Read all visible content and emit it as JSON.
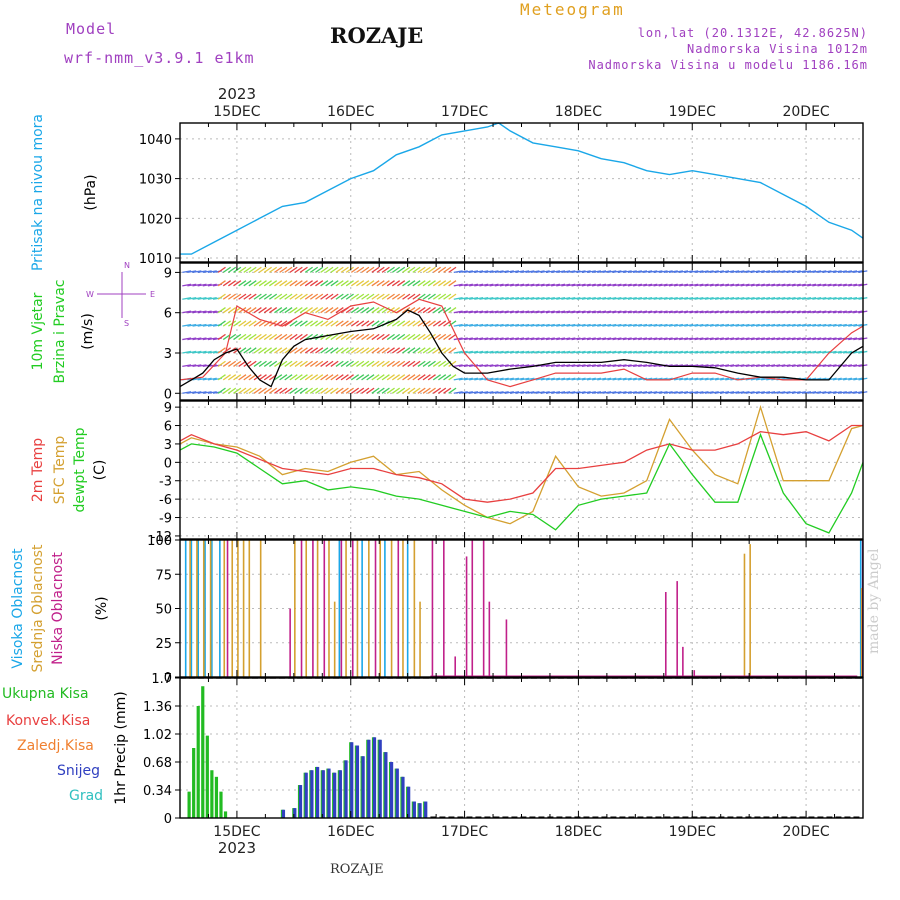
{
  "header": {
    "model_label": "Model",
    "model_name": "wrf-nmm_v3.9.1  e1km",
    "title": "ROZAJE",
    "meteogram": "Meteogram",
    "lonlat": "lon,lat (20.1312E, 42.8625N)",
    "altitude": "Nadmorska Visina 1012m",
    "model_altitude": "Nadmorska Visina u modelu 1186.16m",
    "watermark": "made by Angel",
    "footer": "ROZAJE"
  },
  "time_axis": {
    "year_top": "2023",
    "year_bottom": "2023",
    "days": [
      "15DEC",
      "16DEC",
      "17DEC",
      "18DEC",
      "19DEC",
      "20DEC"
    ],
    "day_positions": [
      1,
      2,
      3,
      4,
      5,
      6
    ],
    "range": [
      0.5,
      6.5
    ]
  },
  "colors": {
    "pressure": "#1aa7e8",
    "temp2m": "#e84040",
    "sfc_temp": "#d4a030",
    "dewpt": "#22cc22",
    "high_cloud": "#1aa7e8",
    "mid_cloud": "#d4a030",
    "low_cloud": "#c0208a",
    "total_precip": "#22bb22",
    "snow": "#3040c0",
    "convective": "#e84040",
    "freezing": "#f08030",
    "hail": "#30c0c0",
    "wind_line": "#000000",
    "gust": "#e84040"
  },
  "chart_data": [
    {
      "type": "line",
      "name_panel": "pressure",
      "ylabel": "Pritisak na nivou mora",
      "unit": "(hPa)",
      "ylim": [
        1009,
        1044
      ],
      "yticks": [
        1010,
        1020,
        1030,
        1040
      ],
      "series": [
        {
          "x": [
            0.5,
            0.6,
            0.8,
            1.0,
            1.2,
            1.4,
            1.6,
            1.8,
            2.0,
            2.2,
            2.4,
            2.6,
            2.8,
            3.0,
            3.2,
            3.3,
            3.4,
            3.6,
            3.8,
            4.0,
            4.2,
            4.4,
            4.6,
            4.8,
            5.0,
            5.2,
            5.4,
            5.6,
            5.8,
            6.0,
            6.2,
            6.4,
            6.5
          ],
          "values": [
            1011,
            1011,
            1014,
            1017,
            1020,
            1023,
            1024,
            1027,
            1030,
            1032,
            1036,
            1038,
            1041,
            1042,
            1043,
            1044,
            1042,
            1039,
            1038,
            1037,
            1035,
            1034,
            1032,
            1031,
            1032,
            1031,
            1030,
            1029,
            1026,
            1023,
            1019,
            1017,
            1015
          ]
        }
      ],
      "grid": true
    },
    {
      "type": "line",
      "name_panel": "wind",
      "ylabel": "10m Vjetar Brzina i Pravac",
      "unit": "(m/s)",
      "compass": [
        "N",
        "S",
        "W",
        "E"
      ],
      "ylim": [
        -0.5,
        9.7
      ],
      "yticks": [
        0,
        3,
        6,
        9
      ],
      "series": [
        {
          "name": "speed",
          "x": [
            0.5,
            0.6,
            0.7,
            0.8,
            0.9,
            1.0,
            1.1,
            1.2,
            1.3,
            1.4,
            1.5,
            1.6,
            1.8,
            2.0,
            2.2,
            2.4,
            2.5,
            2.6,
            2.7,
            2.8,
            2.9,
            3.0,
            3.2,
            3.4,
            3.6,
            3.8,
            4.0,
            4.2,
            4.4,
            4.6,
            4.8,
            5.0,
            5.2,
            5.4,
            5.6,
            5.8,
            6.0,
            6.2,
            6.4,
            6.5
          ],
          "values": [
            0.5,
            1.0,
            1.5,
            2.5,
            3.0,
            3.3,
            2.0,
            1.0,
            0.5,
            2.5,
            3.5,
            4.0,
            4.3,
            4.6,
            4.8,
            5.5,
            6.2,
            5.8,
            4.5,
            3.0,
            2.0,
            1.5,
            1.5,
            1.8,
            2.0,
            2.3,
            2.3,
            2.3,
            2.5,
            2.3,
            2.0,
            2.0,
            1.9,
            1.5,
            1.2,
            1.2,
            1.0,
            1.0,
            3.0,
            3.5
          ]
        },
        {
          "name": "gust",
          "x": [
            0.5,
            0.7,
            0.9,
            1.0,
            1.2,
            1.4,
            1.6,
            1.8,
            2.0,
            2.2,
            2.4,
            2.6,
            2.8,
            3.0,
            3.2,
            3.4,
            3.6,
            3.8,
            4.0,
            4.2,
            4.4,
            4.6,
            4.8,
            5.0,
            5.2,
            5.4,
            5.6,
            5.8,
            6.0,
            6.2,
            6.4,
            6.5
          ],
          "values": [
            1.0,
            1.2,
            3.0,
            6.5,
            5.5,
            5.0,
            6.0,
            5.5,
            6.5,
            6.8,
            6.0,
            7.0,
            6.5,
            3.0,
            1.0,
            0.5,
            1.0,
            1.5,
            1.5,
            1.5,
            1.8,
            1.0,
            1.0,
            1.5,
            1.5,
            1.0,
            1.2,
            1.0,
            1.0,
            3.0,
            4.5,
            5.0
          ]
        }
      ],
      "grid": true
    },
    {
      "type": "line",
      "name_panel": "temperature",
      "ylabel": "2m Temp SFC Temp dewpt Temp",
      "unit": "(C)",
      "ylim": [
        -12.5,
        10
      ],
      "yticks": [
        -12,
        -9,
        -6,
        -3,
        0,
        3,
        6,
        9
      ],
      "series": [
        {
          "name": "2m Temp",
          "x": [
            0.5,
            0.6,
            0.8,
            1.0,
            1.2,
            1.4,
            1.6,
            1.8,
            2.0,
            2.2,
            2.4,
            2.6,
            2.8,
            3.0,
            3.2,
            3.4,
            3.6,
            3.8,
            4.0,
            4.2,
            4.4,
            4.6,
            4.8,
            5.0,
            5.2,
            5.4,
            5.6,
            5.8,
            6.0,
            6.2,
            6.4,
            6.5
          ],
          "values": [
            3.5,
            4.5,
            3.0,
            2.0,
            0.5,
            -1.0,
            -1.5,
            -2.0,
            -1.0,
            -1.0,
            -2.0,
            -2.5,
            -3.5,
            -6.0,
            -6.5,
            -6.0,
            -5.0,
            -1.0,
            -1.0,
            -0.5,
            0.0,
            2.0,
            3.0,
            2.0,
            2.0,
            3.0,
            5.0,
            4.5,
            5.0,
            3.5,
            6.0,
            6.0
          ]
        },
        {
          "name": "SFC Temp",
          "x": [
            0.5,
            0.6,
            0.8,
            1.0,
            1.2,
            1.4,
            1.6,
            1.8,
            2.0,
            2.2,
            2.4,
            2.6,
            2.8,
            3.0,
            3.2,
            3.4,
            3.6,
            3.8,
            4.0,
            4.2,
            4.4,
            4.6,
            4.8,
            5.0,
            5.2,
            5.4,
            5.6,
            5.8,
            6.0,
            6.2,
            6.4,
            6.5
          ],
          "values": [
            3.0,
            4.0,
            3.0,
            2.5,
            1.0,
            -2.0,
            -1.0,
            -1.5,
            0.0,
            1.0,
            -2.0,
            -1.5,
            -4.5,
            -7.0,
            -9.0,
            -10.0,
            -8.0,
            1.0,
            -4.0,
            -5.5,
            -5.0,
            -3.0,
            7.0,
            2.0,
            -2.0,
            -3.5,
            9.0,
            -3.0,
            -3.0,
            -3.0,
            5.5,
            6.0
          ]
        },
        {
          "name": "dewpt Temp",
          "x": [
            0.5,
            0.6,
            0.8,
            1.0,
            1.2,
            1.4,
            1.6,
            1.8,
            2.0,
            2.2,
            2.4,
            2.6,
            2.8,
            3.0,
            3.2,
            3.4,
            3.6,
            3.8,
            4.0,
            4.2,
            4.4,
            4.6,
            4.8,
            5.0,
            5.2,
            5.4,
            5.6,
            5.8,
            6.0,
            6.2,
            6.4,
            6.5
          ],
          "values": [
            2.0,
            3.0,
            2.5,
            1.5,
            -1.0,
            -3.5,
            -3.0,
            -4.5,
            -4.0,
            -4.5,
            -5.5,
            -6.0,
            -7.0,
            -8.0,
            -9.0,
            -8.0,
            -8.5,
            -11.0,
            -7.0,
            -6.0,
            -5.5,
            -5.0,
            3.0,
            -2.0,
            -6.5,
            -6.5,
            4.5,
            -5.0,
            -10.0,
            -11.5,
            -5.0,
            0.0
          ]
        }
      ],
      "grid": true
    },
    {
      "type": "bar",
      "name_panel": "cloud",
      "ylabel": "Visoka Oblacnost Srednja Oblacnost Niska Oblacnost",
      "unit": "(%)",
      "ylim": [
        0,
        100
      ],
      "yticks": [
        0,
        25,
        50,
        75,
        100
      ],
      "series": [
        {
          "name": "Visoka Oblacnost",
          "x": [
            0.55,
            0.6,
            0.66,
            0.72,
            0.78,
            0.85,
            1.9,
            2.1,
            2.3,
            2.5,
            6.48
          ],
          "values": [
            100,
            100,
            100,
            100,
            100,
            100,
            100,
            100,
            100,
            100,
            100
          ]
        },
        {
          "name": "Srednja Oblacnost",
          "x": [
            0.58,
            0.64,
            0.7,
            0.76,
            0.88,
            0.95,
            1.0,
            1.05,
            1.1,
            1.2,
            1.5,
            1.6,
            1.7,
            1.8,
            1.85,
            1.95,
            2.05,
            2.15,
            2.25,
            2.35,
            2.45,
            2.55,
            2.6,
            5.45,
            5.5,
            6.48
          ],
          "values": [
            100,
            100,
            100,
            100,
            100,
            100,
            100,
            100,
            100,
            100,
            100,
            100,
            100,
            100,
            55,
            100,
            100,
            100,
            100,
            100,
            100,
            100,
            55,
            90,
            97,
            65
          ]
        },
        {
          "name": "Niska Oblacnost",
          "x": [
            0.9,
            1.45,
            1.55,
            1.65,
            1.75,
            1.9,
            2.0,
            2.2,
            2.4,
            2.7,
            2.8,
            2.9,
            3.0,
            3.05,
            3.15,
            3.2,
            3.35,
            4.75,
            4.85,
            4.9,
            5.0,
            6.48
          ],
          "values": [
            100,
            50,
            100,
            100,
            100,
            100,
            100,
            100,
            100,
            100,
            100,
            15,
            88,
            100,
            100,
            55,
            42,
            62,
            70,
            22,
            5,
            100
          ]
        }
      ],
      "grid": true
    },
    {
      "type": "bar",
      "name_panel": "precipitation",
      "ylabel": "1hr Precip",
      "unit": "(mm)",
      "legend": [
        "Ukupna Kisa",
        "Konvek.Kisa",
        "Zaledj.Kisa",
        "Snijeg",
        "Grad"
      ],
      "ylim": [
        0,
        1.7
      ],
      "yticks": [
        0,
        0.34,
        0.68,
        1.02,
        1.36,
        1.7
      ],
      "series": [
        {
          "name": "Ukupna Kisa",
          "x": [
            0.58,
            0.62,
            0.66,
            0.7,
            0.74,
            0.78,
            0.82,
            0.86,
            0.9,
            1.4,
            1.5,
            1.55,
            1.6,
            1.65,
            1.7,
            1.75,
            1.8,
            1.85,
            1.9,
            1.95,
            2.0,
            2.05,
            2.1,
            2.15,
            2.2,
            2.25,
            2.3,
            2.35,
            2.4,
            2.45,
            2.5,
            2.55,
            2.6,
            2.65
          ],
          "values": [
            0.32,
            0.85,
            1.36,
            1.6,
            1.0,
            0.58,
            0.5,
            0.32,
            0.08,
            0.1,
            0.12,
            0.4,
            0.55,
            0.58,
            0.62,
            0.58,
            0.6,
            0.55,
            0.58,
            0.7,
            0.92,
            0.88,
            0.75,
            0.95,
            0.98,
            0.95,
            0.8,
            0.68,
            0.6,
            0.5,
            0.38,
            0.2,
            0.18,
            0.2
          ]
        },
        {
          "name": "Snijeg",
          "x": [
            1.4,
            1.5,
            1.55,
            1.6,
            1.65,
            1.7,
            1.75,
            1.8,
            1.85,
            1.9,
            1.95,
            2.0,
            2.05,
            2.1,
            2.15,
            2.2,
            2.25,
            2.3,
            2.35,
            2.4,
            2.45,
            2.5,
            2.55,
            2.6,
            2.65
          ],
          "values": [
            0.1,
            0.12,
            0.4,
            0.55,
            0.58,
            0.62,
            0.58,
            0.6,
            0.55,
            0.58,
            0.7,
            0.92,
            0.88,
            0.75,
            0.95,
            0.98,
            0.95,
            0.8,
            0.68,
            0.6,
            0.5,
            0.38,
            0.2,
            0.18,
            0.2
          ]
        }
      ],
      "grid": true
    }
  ]
}
